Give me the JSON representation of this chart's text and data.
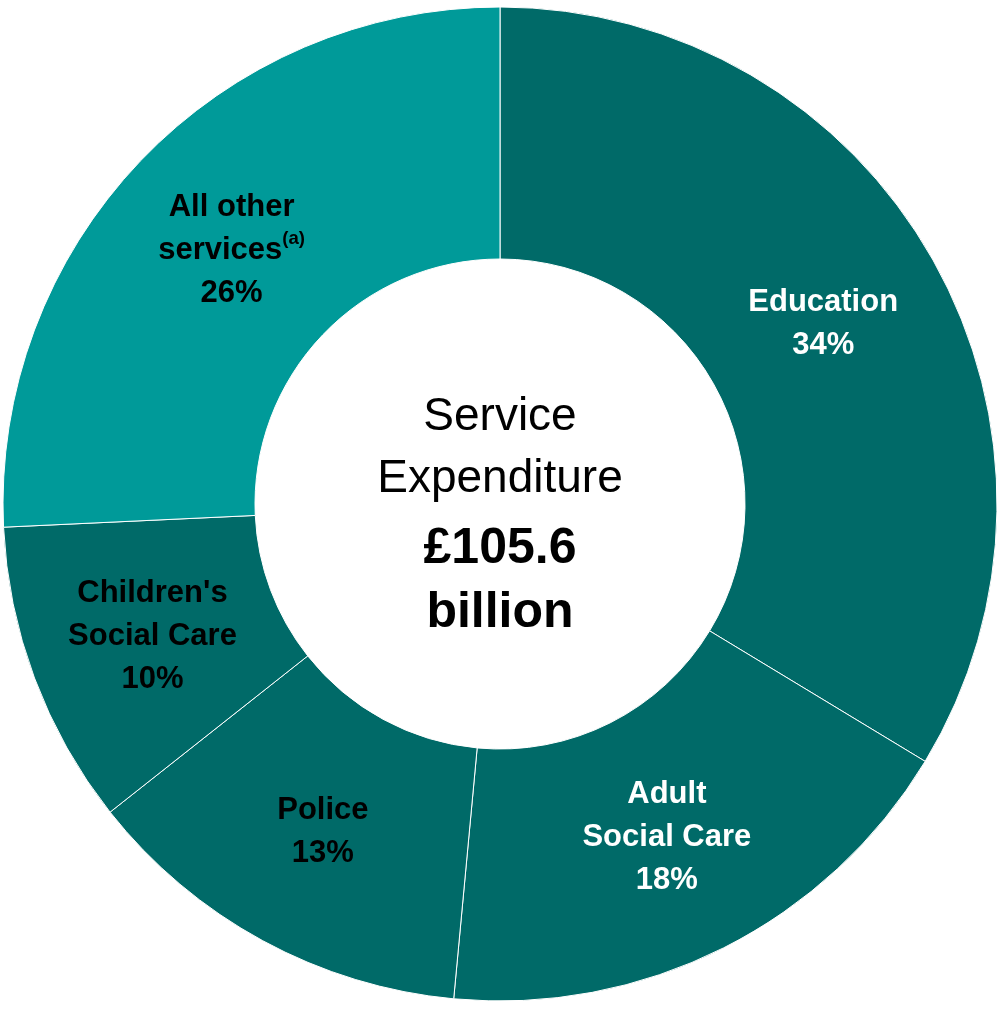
{
  "chart_data": {
    "type": "donut",
    "title": "Service Expenditure",
    "subtitle": "£105.6 billion",
    "categories": [
      "Education",
      "Adult Social Care",
      "Police",
      "Children's Social Care",
      "All other services$^{(a)}$"
    ],
    "values": [
      34,
      18,
      13,
      10,
      26
    ],
    "value_labels": [
      "34%",
      "18%",
      "13%",
      "10%",
      "26%"
    ],
    "colors": [
      "#006a68",
      "#006a68",
      "#006a68",
      "#006a68",
      "#009a99"
    ],
    "legend": false
  }
}
